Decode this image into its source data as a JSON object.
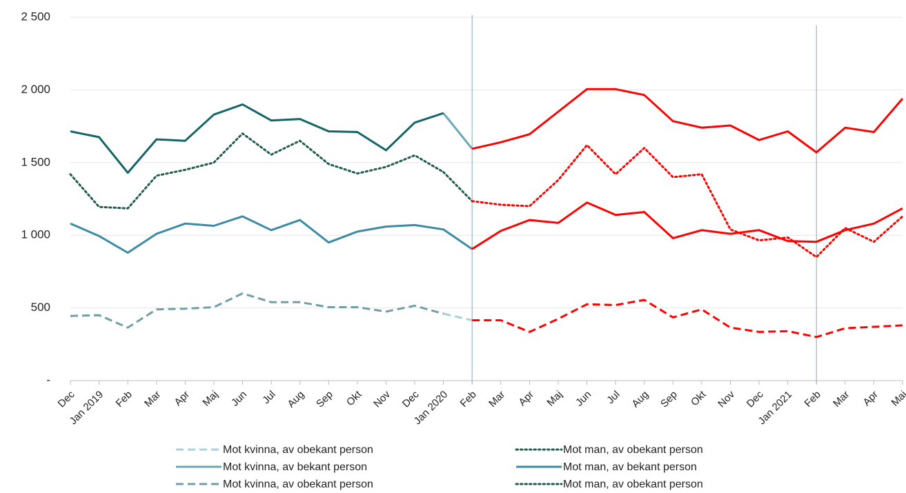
{
  "chart_data": {
    "type": "line",
    "categories": [
      "Dec",
      "Jan 2019",
      "Feb",
      "Mar",
      "Apr",
      "Maj",
      "Jun",
      "Jul",
      "Aug",
      "Sep",
      "Okt",
      "Nov",
      "Dec",
      "Jan 2020",
      "Feb",
      "Mar",
      "Apr",
      "Maj",
      "Jun",
      "Jul",
      "Aug",
      "Sep",
      "Okt",
      "Nov",
      "Dec",
      "Jan 2021",
      "Feb",
      "Mar",
      "Apr",
      "Maj"
    ],
    "ylim": [
      0,
      2500
    ],
    "yticks": [
      {
        "value": 0,
        "label": "-"
      },
      500,
      {
        "value": 1000,
        "label": "1 000"
      },
      {
        "value": 1500,
        "label": "1 500"
      },
      {
        "value": 2000,
        "label": "2 000"
      },
      {
        "value": 2500,
        "label": "2 500"
      }
    ],
    "grid": true,
    "series": [
      {
        "name": "Mot kvinna, av obekant person",
        "color": "#a9d0dc",
        "style": "dashed",
        "values": [
          null,
          null,
          null,
          null,
          null,
          null,
          null,
          null,
          null,
          null,
          null,
          null,
          null,
          460,
          415,
          null,
          null,
          null,
          null,
          null,
          null,
          null,
          null,
          null,
          null,
          null,
          null,
          null,
          null,
          null
        ]
      },
      {
        "name": "Mot man, av obekant person",
        "color": "#1f5c4c",
        "style": "dotted",
        "values": [
          1420,
          1195,
          1185,
          1410,
          1450,
          1500,
          1700,
          1555,
          1650,
          1490,
          1425,
          1470,
          1550,
          1435,
          null,
          null,
          null,
          null,
          null,
          null,
          null,
          null,
          null,
          null,
          null,
          null,
          null,
          null,
          null,
          null
        ]
      },
      {
        "name": "Mot kvinna, av bekant person",
        "color": "#6aa7b8",
        "style": "solid",
        "values": [
          null,
          null,
          null,
          null,
          null,
          null,
          null,
          null,
          null,
          null,
          null,
          null,
          null,
          1840,
          1595,
          null,
          null,
          null,
          null,
          null,
          null,
          null,
          null,
          null,
          null,
          null,
          null,
          null,
          null,
          null
        ]
      },
      {
        "name": "Mot man, av bekant person",
        "color": "#3a8ba3",
        "style": "solid",
        "values": [
          1080,
          995,
          880,
          1010,
          1080,
          1065,
          1130,
          1035,
          1105,
          950,
          1025,
          1060,
          1070,
          1040,
          905,
          null,
          null,
          null,
          null,
          null,
          null,
          null,
          null,
          null,
          null,
          null,
          null,
          null,
          null,
          null
        ]
      },
      {
        "name": "Mot kvinna, av obekant person",
        "color": "#6f9ea6",
        "style": "dashed",
        "values": [
          445,
          450,
          365,
          490,
          495,
          505,
          600,
          540,
          540,
          505,
          505,
          475,
          515,
          460,
          null,
          null,
          null,
          null,
          null,
          null,
          null,
          null,
          null,
          null,
          null,
          null,
          null,
          null,
          null,
          null
        ]
      },
      {
        "name": "Mot man, av obekant person",
        "color": "#1f5c4c",
        "style": "dotted",
        "values": [
          null,
          null,
          null,
          null,
          null,
          null,
          null,
          null,
          null,
          null,
          null,
          null,
          null,
          1435,
          1235,
          null,
          null,
          null,
          null,
          null,
          null,
          null,
          null,
          null,
          null,
          null,
          null,
          null,
          null,
          null
        ]
      },
      {
        "color": "#136466",
        "style": "solid",
        "values": [
          1715,
          1675,
          1430,
          1660,
          1650,
          1830,
          1900,
          1790,
          1800,
          1715,
          1710,
          1585,
          1775,
          1840,
          null,
          null,
          null,
          null,
          null,
          null,
          null,
          null,
          null,
          null,
          null,
          null,
          null,
          null,
          null,
          null
        ]
      },
      {
        "color": "#ff0000",
        "style": "solid",
        "values": [
          null,
          null,
          null,
          null,
          null,
          null,
          null,
          null,
          null,
          null,
          null,
          null,
          null,
          null,
          1595,
          1640,
          1695,
          1850,
          2005,
          2005,
          1965,
          1785,
          1740,
          1755,
          1655,
          1715,
          1570,
          1740,
          1710,
          1940
        ]
      },
      {
        "color": "#ff0000",
        "style": "dotted",
        "values": [
          null,
          null,
          null,
          null,
          null,
          null,
          null,
          null,
          null,
          null,
          null,
          null,
          null,
          null,
          1235,
          1210,
          1200,
          1380,
          1620,
          1420,
          1600,
          1400,
          1420,
          1040,
          965,
          985,
          850,
          1050,
          955,
          1130
        ]
      },
      {
        "color": "#ff0000",
        "style": "solid",
        "values": [
          null,
          null,
          null,
          null,
          null,
          null,
          null,
          null,
          null,
          null,
          null,
          null,
          null,
          null,
          905,
          1030,
          1105,
          1085,
          1225,
          1140,
          1160,
          980,
          1035,
          1010,
          1035,
          960,
          955,
          1035,
          1080,
          1185
        ]
      },
      {
        "color": "#ff0000",
        "style": "dashed",
        "values": [
          null,
          null,
          null,
          null,
          null,
          null,
          null,
          null,
          null,
          null,
          null,
          null,
          null,
          null,
          415,
          415,
          335,
          425,
          525,
          520,
          555,
          435,
          490,
          365,
          335,
          340,
          300,
          360,
          370,
          380
        ]
      }
    ]
  }
}
